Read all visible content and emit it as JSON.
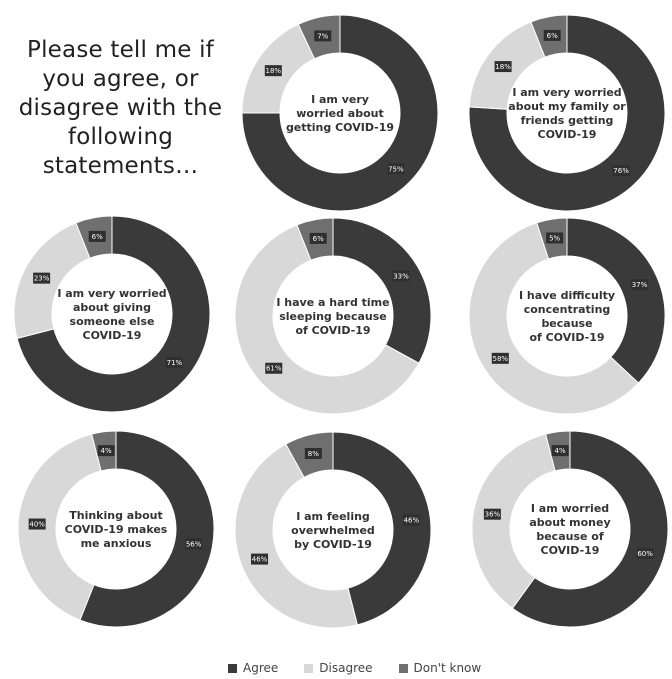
{
  "intro_text": "Please tell me if you agree, or disagree with the following statements…",
  "colors": {
    "Agree": "#3a3a3a",
    "Disagree": "#d8d8d8",
    "Dont_know": "#6f6f6f",
    "label_box": "#2f2f2f"
  },
  "legend": [
    {
      "label": "Agree",
      "color": "#3a3a3a"
    },
    {
      "label": "Disagree",
      "color": "#d8d8d8"
    },
    {
      "label": "Don't know",
      "color": "#6f6f6f"
    }
  ],
  "chart_data": [
    {
      "type": "pie",
      "statement": [
        "I am very",
        "worried about",
        "getting COVID-19"
      ],
      "categories": [
        "Agree",
        "Disagree",
        "Don't know"
      ],
      "values": [
        75,
        18,
        7
      ],
      "labels": [
        "75%",
        "18%",
        "7%"
      ]
    },
    {
      "type": "pie",
      "statement": [
        "I am very worried",
        "about my family or",
        "friends getting",
        "COVID-19"
      ],
      "categories": [
        "Agree",
        "Disagree",
        "Don't know"
      ],
      "values": [
        76,
        18,
        6
      ],
      "labels": [
        "76%",
        "18%",
        "6%"
      ]
    },
    {
      "type": "pie",
      "statement": [
        "I am very worried",
        "about giving",
        "someone else",
        "COVID-19"
      ],
      "categories": [
        "Agree",
        "Disagree",
        "Don't know"
      ],
      "values": [
        71,
        23,
        6
      ],
      "labels": [
        "71%",
        "23%",
        "6%"
      ]
    },
    {
      "type": "pie",
      "statement": [
        "I have a hard time",
        "sleeping because",
        "of COVID-19"
      ],
      "categories": [
        "Agree",
        "Disagree",
        "Don't know"
      ],
      "values": [
        33,
        61,
        6
      ],
      "labels": [
        "33%",
        "61%",
        "6%"
      ]
    },
    {
      "type": "pie",
      "statement": [
        "I have difficulty",
        "concentrating",
        "because",
        "of COVID-19"
      ],
      "categories": [
        "Agree",
        "Disagree",
        "Don't know"
      ],
      "values": [
        37,
        58,
        5
      ],
      "labels": [
        "37%",
        "58%",
        "5%"
      ]
    },
    {
      "type": "pie",
      "statement": [
        "Thinking about",
        "COVID-19 makes",
        "me anxious"
      ],
      "categories": [
        "Agree",
        "Disagree",
        "Don't know"
      ],
      "values": [
        56,
        40,
        4
      ],
      "labels": [
        "56%",
        "40%",
        "4%"
      ]
    },
    {
      "type": "pie",
      "statement": [
        "I am feeling",
        "overwhelmed",
        "by COVID-19"
      ],
      "categories": [
        "Agree",
        "Disagree",
        "Don't know"
      ],
      "values": [
        46,
        46,
        8
      ],
      "labels": [
        "46%",
        "46%",
        "8%"
      ]
    },
    {
      "type": "pie",
      "statement": [
        "I am worried",
        "about money",
        "because of",
        "COVID-19"
      ],
      "categories": [
        "Agree",
        "Disagree",
        "Don't know"
      ],
      "values": [
        60,
        36,
        4
      ],
      "labels": [
        "60%",
        "36%",
        "4%"
      ]
    }
  ]
}
